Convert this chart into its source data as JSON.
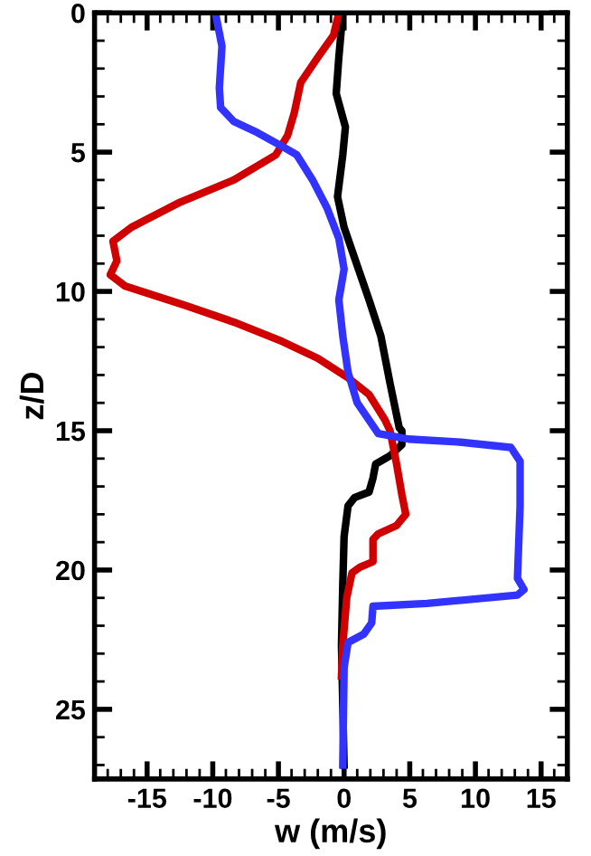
{
  "chart_data": {
    "type": "line",
    "xlabel": "w (m/s)",
    "ylabel": "z/D",
    "xlim": [
      -19,
      17
    ],
    "ylim": [
      27.5,
      0
    ],
    "xticks": [
      -15,
      -10,
      -5,
      0,
      5,
      10,
      15
    ],
    "yticks": [
      0,
      5,
      10,
      15,
      20,
      25
    ],
    "marker": "none",
    "line_style": "solid",
    "series": [
      {
        "color": "#000000",
        "x": [
          -0.1,
          -0.4,
          -0.6,
          0.1,
          -0.1,
          -0.5,
          0,
          0.8,
          1.9,
          2.8,
          3.5,
          4.2,
          4.4,
          4.4,
          3.5,
          2.4,
          2.2,
          1.9,
          0.8,
          0.3,
          0,
          -0.1,
          -0.2,
          0
        ],
        "values": [
          0,
          1.6,
          2.9,
          4.1,
          5.1,
          6.6,
          7.7,
          8.8,
          10.3,
          11.6,
          13.3,
          14.9,
          15,
          15.5,
          15.9,
          16.2,
          16.7,
          17.2,
          17.4,
          17.7,
          18.8,
          20.5,
          22.7,
          27
        ]
      },
      {
        "color": "#d00000",
        "x": [
          -0.4,
          -0.8,
          -2,
          -3.3,
          -3.8,
          -4.3,
          -5.2,
          -8.4,
          -12.5,
          -16.2,
          -17.6,
          -17.3,
          -17.8,
          -16.7,
          -12.1,
          -8.4,
          -4.7,
          -2,
          0.3,
          1.9,
          3.1,
          3.5,
          4,
          4.4,
          4.7,
          4,
          2.6,
          2.2,
          2.2,
          1.2,
          0.6,
          0.2,
          -0.1,
          -0.2
        ],
        "values": [
          0,
          0.8,
          1.6,
          2.5,
          3.6,
          4.4,
          5.1,
          6,
          6.8,
          7.7,
          8.2,
          8.9,
          9.4,
          9.8,
          10.5,
          11.1,
          11.8,
          12.4,
          13.1,
          13.7,
          14.6,
          15,
          16.2,
          17.3,
          18,
          18.4,
          18.7,
          18.9,
          19.7,
          19.9,
          20.1,
          21,
          22.7,
          23.8
        ]
      },
      {
        "color": "#3333ff",
        "x": [
          -9.8,
          -9.3,
          -9.5,
          -9.4,
          -8.4,
          -6.6,
          -4.7,
          -3.6,
          -2.4,
          -1.3,
          -0.4,
          0,
          -0.4,
          -0.1,
          0.3,
          1,
          2.6,
          4.9,
          8.6,
          12.7,
          13.4,
          13.4,
          13.2,
          13.7,
          13.2,
          6.3,
          2.2,
          2.1,
          1.5,
          0.3,
          0,
          -0.1
        ],
        "values": [
          0,
          1.2,
          2.7,
          3.4,
          3.9,
          4.3,
          4.8,
          5.1,
          6,
          7,
          8.1,
          9.2,
          10.3,
          11.6,
          12.9,
          14,
          15.1,
          15.3,
          15.4,
          15.6,
          16.1,
          17.7,
          20.3,
          20.7,
          20.9,
          21.2,
          21.3,
          21.9,
          22.3,
          22.6,
          23.5,
          27
        ]
      }
    ]
  }
}
